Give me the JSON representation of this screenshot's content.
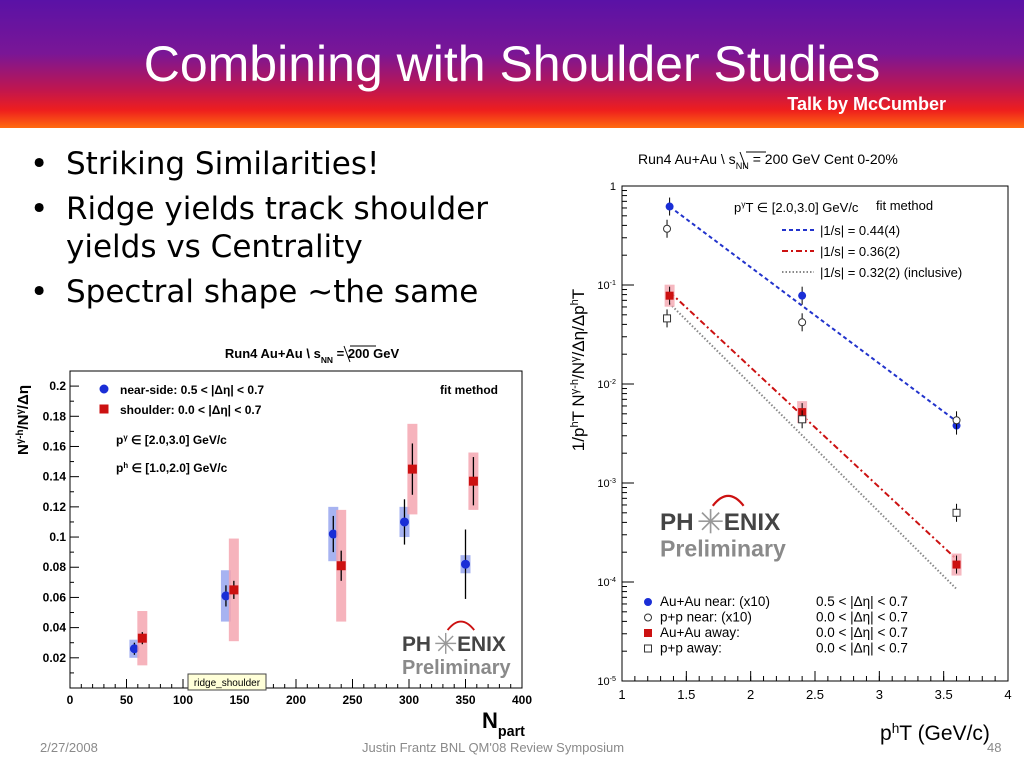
{
  "slide": {
    "title": "Combining with Shoulder Studies",
    "credit": "Talk by McCumber",
    "bullets": [
      "Striking Similarities!",
      "Ridge yields track shoulder yields vs Centrality",
      "Spectral shape ~the same"
    ],
    "footer": {
      "date": "2/27/2008",
      "center": "Justin Frantz BNL QM'08 Review Symposium",
      "page": "48"
    },
    "logo_text": [
      "PH",
      "ENIX",
      "Preliminary"
    ]
  },
  "chart_data": [
    {
      "type": "scatter",
      "title": "Run4 Au+Au \\ s_NN = 200 GeV",
      "xlabel": "N_part",
      "ylabel": "N^{γ-h}/N^γ/Δη",
      "xlim": [
        0,
        400
      ],
      "ylim": [
        0,
        0.21
      ],
      "x_ticks": [
        "0",
        "50",
        "100",
        "150",
        "200",
        "250",
        "300",
        "350",
        "400"
      ],
      "y_ticks": [
        "0.02",
        "0.04",
        "0.06",
        "0.08",
        "0.1",
        "0.12",
        "0.14",
        "0.16",
        "0.18",
        "0.2"
      ],
      "legend_position": "top-left",
      "annotations": [
        "fit method",
        "p_T^γ ∈ [2.0,3.0] GeV/c",
        "p_T^h ∈ [1.0,2.0] GeV/c",
        "ridge_shoulder"
      ],
      "series": [
        {
          "name": "near-side: 0.5 < |Δη| < 0.7",
          "color": "#1a2ed6",
          "marker": "circle",
          "points": [
            {
              "x": 57,
              "y": 0.026,
              "stat": 0.004,
              "sys": 0.006
            },
            {
              "x": 138,
              "y": 0.061,
              "stat": 0.007,
              "sys": 0.017
            },
            {
              "x": 233,
              "y": 0.102,
              "stat": 0.012,
              "sys": 0.018
            },
            {
              "x": 296,
              "y": 0.11,
              "stat": 0.015,
              "sys": 0.01
            },
            {
              "x": 350,
              "y": 0.082,
              "stat": 0.023,
              "sys": 0.006
            }
          ]
        },
        {
          "name": "shoulder: 0.0 < |Δη| < 0.7",
          "color": "#cc1111",
          "marker": "square",
          "points": [
            {
              "x": 64,
              "y": 0.033,
              "stat": 0.004,
              "sys": 0.018
            },
            {
              "x": 145,
              "y": 0.065,
              "stat": 0.006,
              "sys": 0.034
            },
            {
              "x": 240,
              "y": 0.081,
              "stat": 0.01,
              "sys": 0.037
            },
            {
              "x": 303,
              "y": 0.145,
              "stat": 0.017,
              "sys": 0.03
            },
            {
              "x": 357,
              "y": 0.137,
              "stat": 0.016,
              "sys": 0.019
            }
          ]
        }
      ]
    },
    {
      "type": "scatter",
      "title": "Run4 Au+Au \\ s_NN = 200 GeV Cent 0-20%",
      "xlabel": "p_T^h (GeV/c)",
      "ylabel": "1/p_T^h N^{γ-h}/N^γ/Δη/Δp_T^h",
      "xlim": [
        1,
        4
      ],
      "ylim": [
        1e-05,
        1
      ],
      "y_scale": "log",
      "x_ticks": [
        "1",
        "1.5",
        "2",
        "2.5",
        "3",
        "3.5",
        "4"
      ],
      "y_ticks": [
        "10^-5",
        "10^-4",
        "10^-3",
        "10^-2",
        "10^-1",
        "1"
      ],
      "annotations": [
        "p_T^γ ∈ [2.0,3.0] GeV/c",
        "fit method"
      ],
      "fits": [
        {
          "label": "|1/s| = 0.44(4)",
          "style": "dashed",
          "color": "#2233cc",
          "x0": 1.37,
          "y0": 0.62,
          "x1": 3.6,
          "y1": 0.0042
        },
        {
          "label": "|1/s| = 0.36(2)",
          "style": "dashdot",
          "color": "#cc1111",
          "x0": 1.37,
          "y0": 0.085,
          "x1": 3.6,
          "y1": 0.00017
        },
        {
          "label": "|1/s| = 0.32(2) (inclusive)",
          "style": "dotted",
          "color": "#888888",
          "x0": 1.37,
          "y0": 0.065,
          "x1": 3.6,
          "y1": 8.5e-05
        }
      ],
      "series": [
        {
          "name": "Au+Au near: (x10)",
          "cut": "0.5 < |Δη| < 0.7",
          "color": "#1a2ed6",
          "marker": "circle-filled",
          "points": [
            {
              "x": 1.37,
              "y": 0.62
            },
            {
              "x": 2.4,
              "y": 0.078
            },
            {
              "x": 3.6,
              "y": 0.0038
            }
          ]
        },
        {
          "name": "p+p near: (x10)",
          "cut": "0.0 < |Δη| < 0.7",
          "color": "#333333",
          "marker": "circle-open",
          "points": [
            {
              "x": 1.35,
              "y": 0.37
            },
            {
              "x": 2.4,
              "y": 0.042
            },
            {
              "x": 3.6,
              "y": 0.0043
            }
          ]
        },
        {
          "name": "Au+Au away:",
          "cut": "0.0 < |Δη| < 0.7",
          "color": "#cc1111",
          "marker": "square-filled",
          "points": [
            {
              "x": 1.37,
              "y": 0.078
            },
            {
              "x": 2.4,
              "y": 0.0052
            },
            {
              "x": 3.6,
              "y": 0.00015
            }
          ]
        },
        {
          "name": "p+p away:",
          "cut": "0.0 < |Δη| < 0.7",
          "color": "#333333",
          "marker": "square-open",
          "points": [
            {
              "x": 1.35,
              "y": 0.046
            },
            {
              "x": 2.4,
              "y": 0.0044
            },
            {
              "x": 3.6,
              "y": 0.0005
            }
          ]
        }
      ]
    }
  ]
}
